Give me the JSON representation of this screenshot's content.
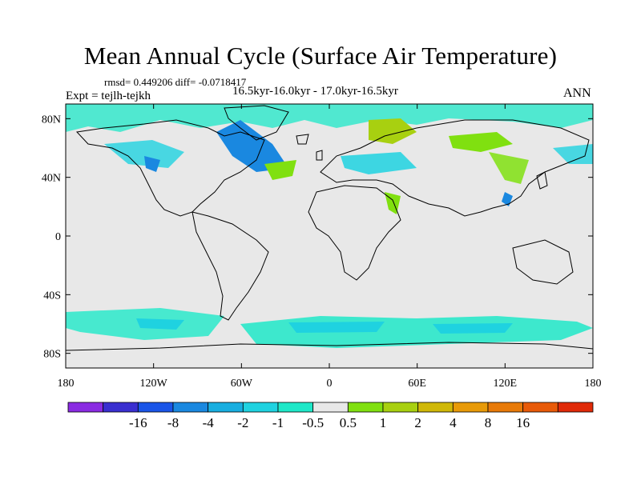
{
  "title": "Mean Annual Cycle (Surface Air Temperature)",
  "stats": "rmsd= 0.449206 diff= -0.0718417",
  "experiment": "Expt = tejlh-tejkh",
  "period": "16.5kyr-16.0kyr - 17.0kyr-16.5kyr",
  "season": "ANN",
  "lat_ticks": [
    {
      "label": "80N",
      "value": 80
    },
    {
      "label": "40N",
      "value": 40
    },
    {
      "label": "0",
      "value": 0
    },
    {
      "label": "40S",
      "value": -40
    },
    {
      "label": "80S",
      "value": -80
    }
  ],
  "lon_ticks": [
    {
      "label": "180",
      "value": -180
    },
    {
      "label": "120W",
      "value": -120
    },
    {
      "label": "60W",
      "value": -60
    },
    {
      "label": "0",
      "value": 0
    },
    {
      "label": "60E",
      "value": 60
    },
    {
      "label": "120E",
      "value": 120
    },
    {
      "label": "180",
      "value": 180
    }
  ],
  "colorbar": {
    "colors": [
      "#8a2be2",
      "#3a2fd0",
      "#1a55e8",
      "#1a88e0",
      "#18aee0",
      "#1fd2e0",
      "#1ee8c8",
      "#e8e8e8",
      "#80e010",
      "#a8d010",
      "#d0b808",
      "#e89a08",
      "#e87a08",
      "#e85a08",
      "#e02a08"
    ],
    "labels": [
      "-16",
      "-8",
      "-4",
      "-2",
      "-1",
      "-0.5",
      "0.5",
      "1",
      "2",
      "4",
      "8",
      "16"
    ]
  },
  "colors": {
    "background_field": "#e8e8e8",
    "coast": "#000000"
  }
}
